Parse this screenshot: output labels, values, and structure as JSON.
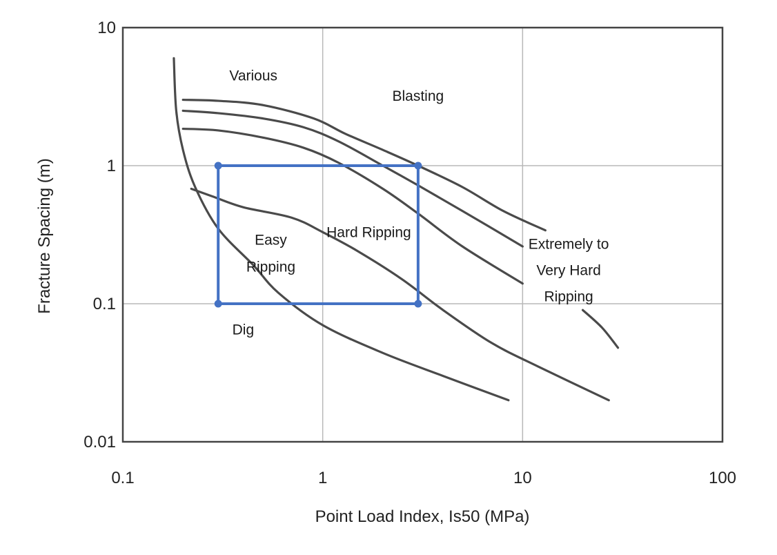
{
  "chart_data": {
    "type": "line",
    "title": "",
    "xlabel": "Point Load Index, Is50 (MPa)",
    "ylabel": "Fracture Spacing (m)",
    "x_scale": "log",
    "y_scale": "log",
    "xlim": [
      0.1,
      100
    ],
    "ylim": [
      0.01,
      10
    ],
    "x_ticks": [
      0.1,
      1,
      10,
      100
    ],
    "x_tick_labels": [
      "0.1",
      "1",
      "10",
      "100"
    ],
    "y_ticks": [
      0.01,
      0.1,
      1,
      10
    ],
    "y_tick_labels": [
      "0.01",
      "0.1",
      "1",
      "10"
    ],
    "grid": true,
    "series": [
      {
        "points": [
          [
            0.18,
            6.0
          ],
          [
            0.185,
            2.5
          ],
          [
            0.2,
            1.3
          ],
          [
            0.23,
            0.7
          ],
          [
            0.3,
            0.35
          ],
          [
            0.45,
            0.19
          ],
          [
            0.6,
            0.12
          ],
          [
            1.0,
            0.07
          ],
          [
            2.0,
            0.044
          ],
          [
            4.0,
            0.03
          ],
          [
            8.5,
            0.02
          ]
        ]
      },
      {
        "points": [
          [
            0.22,
            0.68
          ],
          [
            0.28,
            0.6
          ],
          [
            0.4,
            0.5
          ],
          [
            0.7,
            0.42
          ],
          [
            1.0,
            0.33
          ],
          [
            1.5,
            0.24
          ],
          [
            2.5,
            0.15
          ],
          [
            4.0,
            0.09
          ],
          [
            7.0,
            0.052
          ],
          [
            12.0,
            0.035
          ],
          [
            27.0,
            0.02
          ]
        ]
      },
      {
        "points": [
          [
            0.2,
            1.85
          ],
          [
            0.3,
            1.8
          ],
          [
            0.5,
            1.6
          ],
          [
            0.8,
            1.35
          ],
          [
            1.2,
            1.05
          ],
          [
            2.0,
            0.68
          ],
          [
            3.0,
            0.45
          ],
          [
            5.0,
            0.26
          ],
          [
            10.0,
            0.14
          ]
        ]
      },
      {
        "points": [
          [
            0.2,
            2.5
          ],
          [
            0.3,
            2.4
          ],
          [
            0.5,
            2.2
          ],
          [
            0.8,
            1.9
          ],
          [
            1.2,
            1.5
          ],
          [
            2.0,
            1.0
          ],
          [
            3.0,
            0.72
          ],
          [
            5.0,
            0.47
          ],
          [
            10.0,
            0.26
          ]
        ]
      },
      {
        "points": [
          [
            0.2,
            3.0
          ],
          [
            0.3,
            2.95
          ],
          [
            0.5,
            2.75
          ],
          [
            0.9,
            2.2
          ],
          [
            1.3,
            1.7
          ],
          [
            2.0,
            1.3
          ],
          [
            3.0,
            1.0
          ],
          [
            5.0,
            0.7
          ],
          [
            8.0,
            0.47
          ],
          [
            13.0,
            0.34
          ]
        ]
      },
      {
        "points": [
          [
            20.0,
            0.09
          ],
          [
            25.0,
            0.067
          ],
          [
            30.0,
            0.048
          ]
        ]
      }
    ],
    "highlight_box": {
      "x": [
        0.3,
        3.0
      ],
      "y": [
        0.1,
        1.0
      ],
      "color": "#4472c4"
    },
    "annotations": [
      {
        "text": "Various",
        "x": 0.45,
        "y": 4.5
      },
      {
        "text": "Blasting",
        "x": 3.0,
        "y": 3.2
      },
      {
        "text": "Hard Ripping",
        "x": 1.7,
        "y": 0.33
      },
      {
        "text": "Easy",
        "x": 0.55,
        "y": 0.29
      },
      {
        "text": "Ripping",
        "x": 0.55,
        "y": 0.185
      },
      {
        "text": "Extremely to",
        "x": 17.0,
        "y": 0.27
      },
      {
        "text": "Very Hard",
        "x": 17.0,
        "y": 0.175
      },
      {
        "text": "Ripping",
        "x": 17.0,
        "y": 0.113
      },
      {
        "text": "Dig",
        "x": 0.4,
        "y": 0.065
      }
    ]
  }
}
